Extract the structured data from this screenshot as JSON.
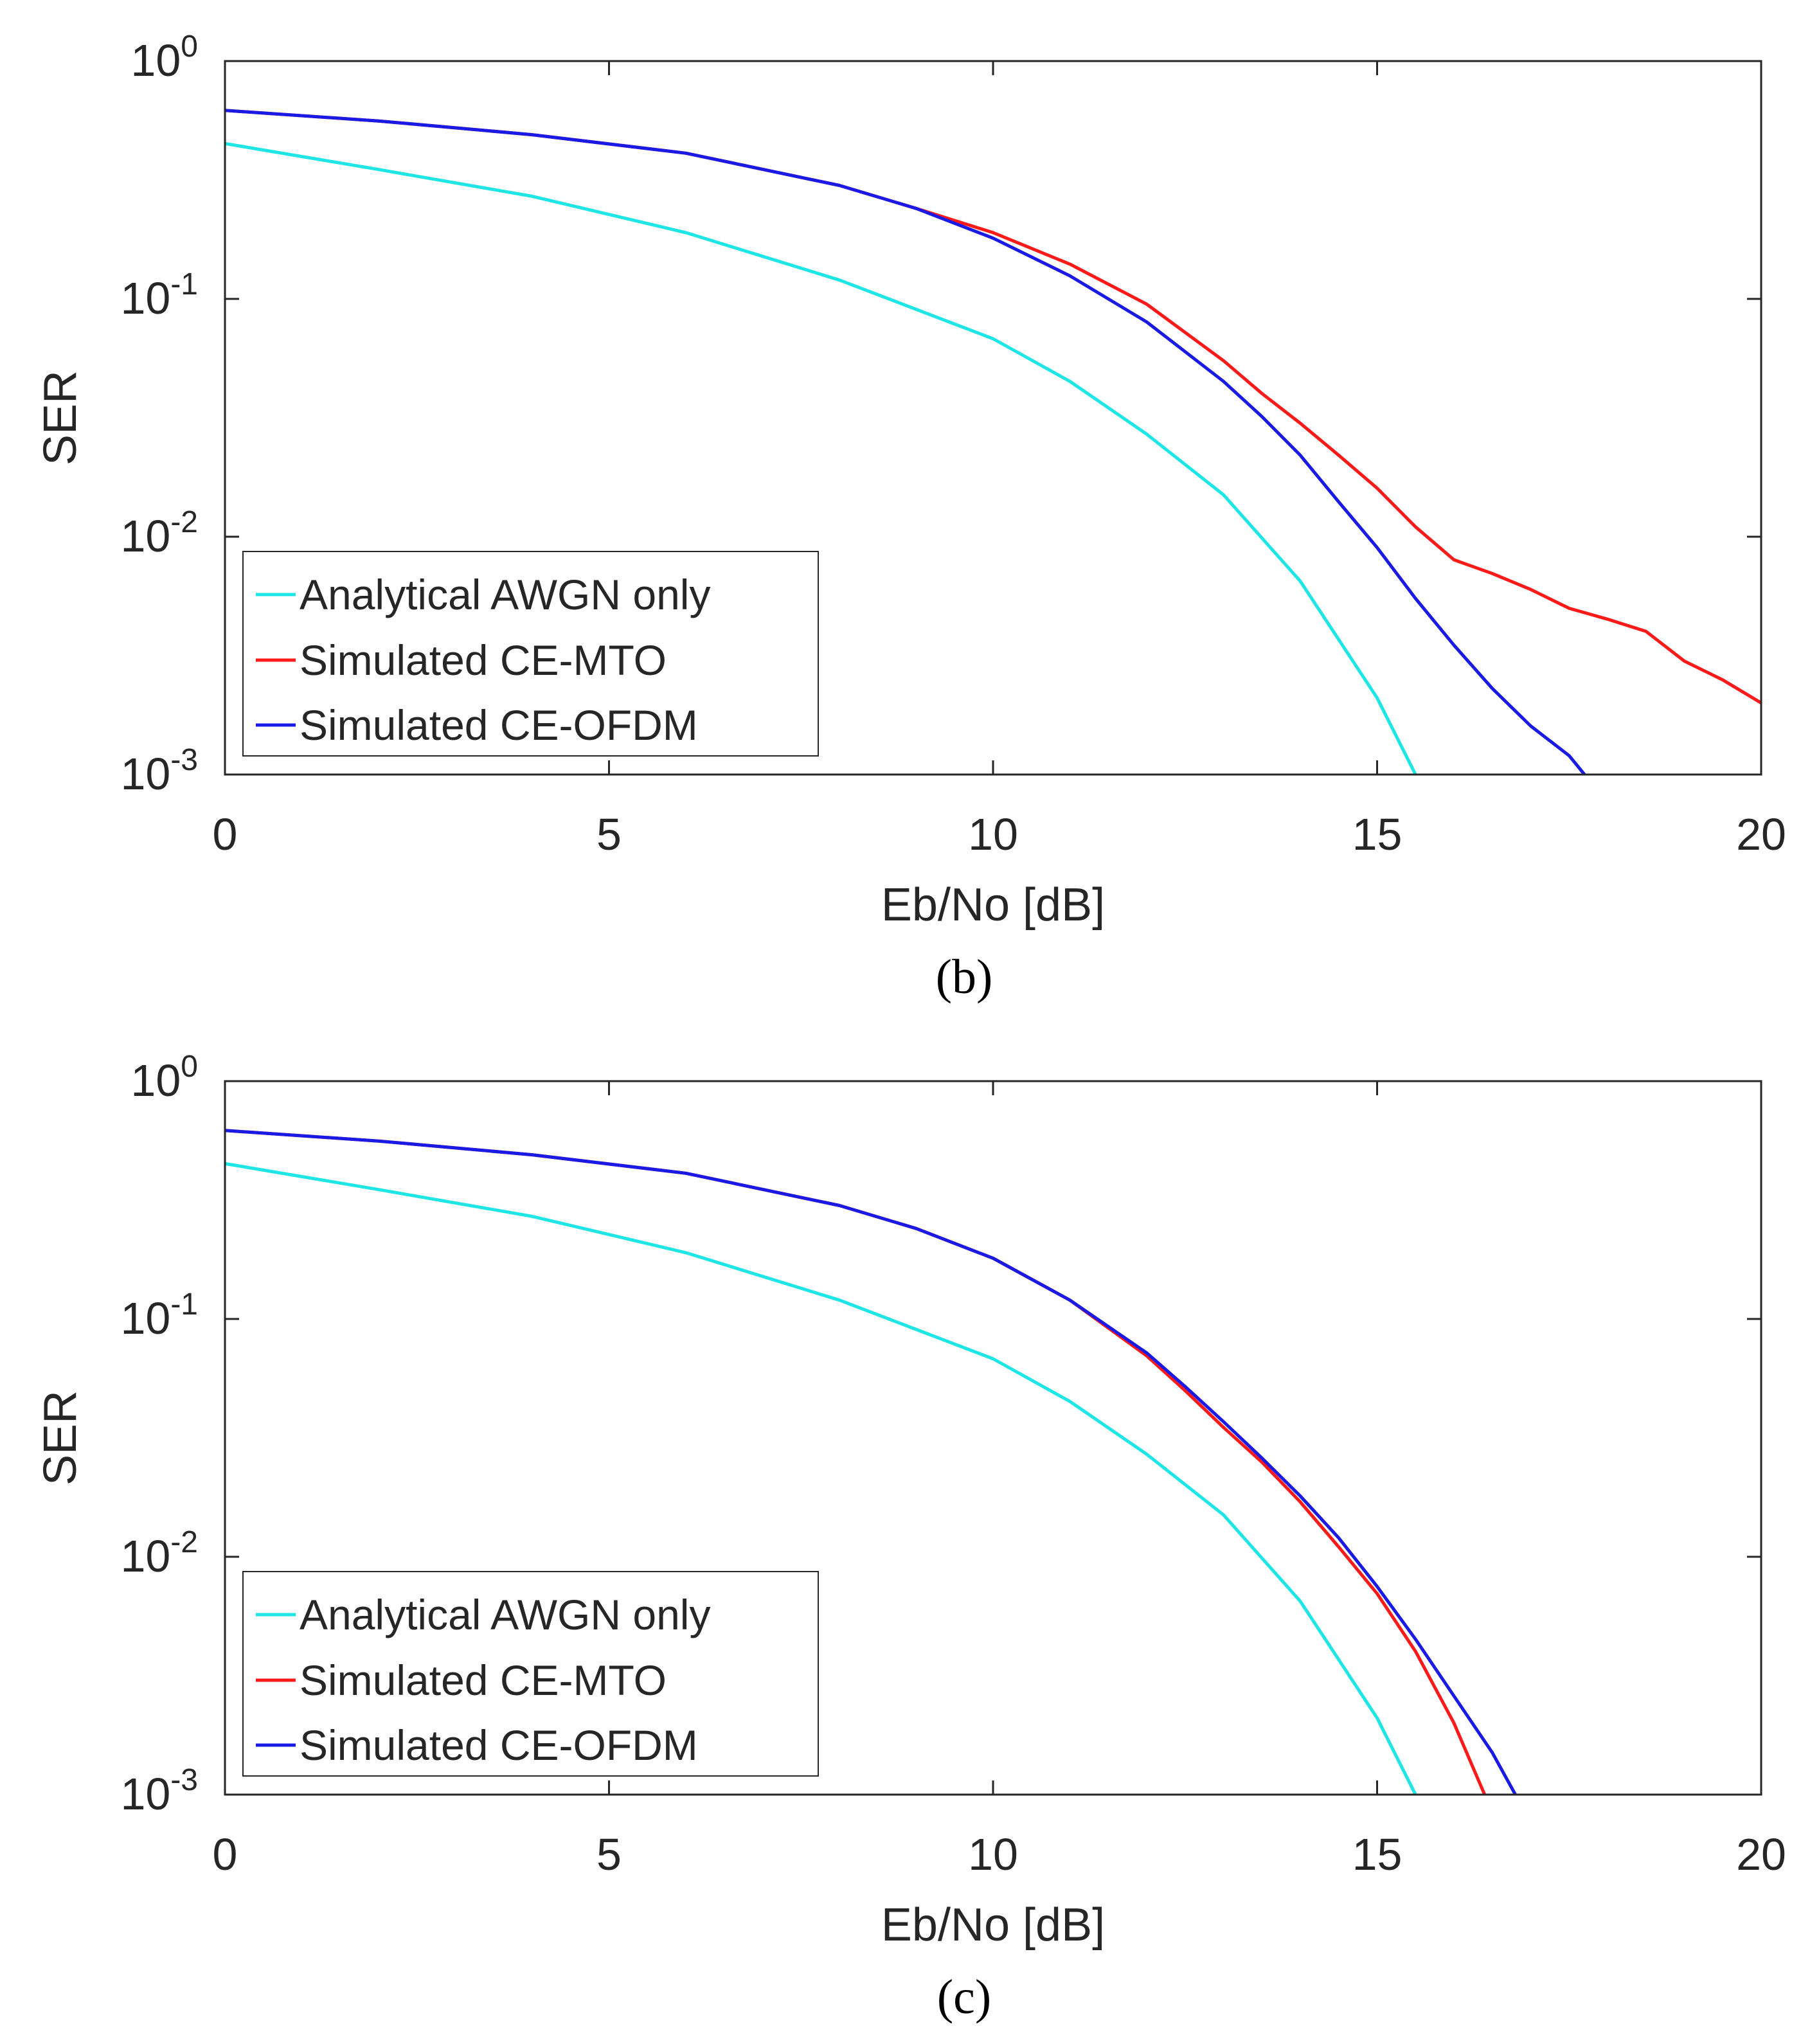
{
  "chart_data": [
    {
      "type": "line",
      "panel_label": "(b)",
      "xlabel": "Eb/No [dB]",
      "ylabel": "SER",
      "xlim": [
        0,
        20
      ],
      "ylim": [
        0.001,
        1
      ],
      "yscale": "log",
      "x_ticks": [
        "0",
        "5",
        "10",
        "15",
        "20"
      ],
      "y_ticks": [
        {
          "base": "10",
          "exp": "0"
        },
        {
          "base": "10",
          "exp": "-1"
        },
        {
          "base": "10",
          "exp": "-2"
        },
        {
          "base": "10",
          "exp": "-3"
        }
      ],
      "legend_location": "bottom-left",
      "grid": false,
      "series": [
        {
          "name": "Analytical AWGN only",
          "color": "#1ee6e6",
          "x": [
            0,
            2,
            4,
            6,
            8,
            10,
            11,
            12,
            13,
            14,
            15,
            15.5
          ],
          "y": [
            0.45,
            0.35,
            0.27,
            0.19,
            0.12,
            0.068,
            0.045,
            0.027,
            0.015,
            0.0065,
            0.0021,
            0.001
          ]
        },
        {
          "name": "Simulated CE-MTO",
          "color": "#ff1a1a",
          "x": [
            0,
            2,
            4,
            6,
            8,
            9,
            10,
            11,
            12,
            13,
            13.5,
            14,
            14.5,
            15,
            15.5,
            16,
            16.5,
            17,
            17.5,
            18,
            18.5,
            19,
            19.5,
            20
          ],
          "y": [
            0.62,
            0.56,
            0.49,
            0.41,
            0.3,
            0.24,
            0.19,
            0.14,
            0.095,
            0.055,
            0.04,
            0.03,
            0.022,
            0.016,
            0.011,
            0.008,
            0.007,
            0.006,
            0.005,
            0.0045,
            0.004,
            0.003,
            0.0025,
            0.002
          ]
        },
        {
          "name": "Simulated CE-OFDM",
          "color": "#1a1ae6",
          "x": [
            0,
            2,
            4,
            6,
            8,
            9,
            10,
            11,
            12,
            13,
            13.5,
            14,
            14.5,
            15,
            15.5,
            16,
            16.5,
            17,
            17.5,
            17.7
          ],
          "y": [
            0.62,
            0.56,
            0.49,
            0.41,
            0.3,
            0.24,
            0.18,
            0.125,
            0.08,
            0.045,
            0.032,
            0.022,
            0.014,
            0.009,
            0.0055,
            0.0035,
            0.0023,
            0.0016,
            0.0012,
            0.001
          ]
        }
      ]
    },
    {
      "type": "line",
      "panel_label": "(c)",
      "xlabel": "Eb/No [dB]",
      "ylabel": "SER",
      "xlim": [
        0,
        20
      ],
      "ylim": [
        0.001,
        1
      ],
      "yscale": "log",
      "x_ticks": [
        "0",
        "5",
        "10",
        "15",
        "20"
      ],
      "y_ticks": [
        {
          "base": "10",
          "exp": "0"
        },
        {
          "base": "10",
          "exp": "-1"
        },
        {
          "base": "10",
          "exp": "-2"
        },
        {
          "base": "10",
          "exp": "-3"
        }
      ],
      "legend_location": "bottom-left",
      "grid": false,
      "series": [
        {
          "name": "Analytical AWGN only",
          "color": "#1ee6e6",
          "x": [
            0,
            2,
            4,
            6,
            8,
            10,
            11,
            12,
            13,
            14,
            15,
            15.5
          ],
          "y": [
            0.45,
            0.35,
            0.27,
            0.19,
            0.12,
            0.068,
            0.045,
            0.027,
            0.015,
            0.0065,
            0.0021,
            0.001
          ]
        },
        {
          "name": "Simulated CE-MTO",
          "color": "#ff1a1a",
          "x": [
            0,
            2,
            4,
            6,
            8,
            9,
            10,
            11,
            12,
            12.5,
            13,
            13.5,
            14,
            14.5,
            15,
            15.5,
            16,
            16.4
          ],
          "y": [
            0.62,
            0.56,
            0.49,
            0.41,
            0.3,
            0.24,
            0.18,
            0.12,
            0.07,
            0.05,
            0.035,
            0.025,
            0.017,
            0.011,
            0.007,
            0.004,
            0.002,
            0.001
          ]
        },
        {
          "name": "Simulated CE-OFDM",
          "color": "#1a1ae6",
          "x": [
            0,
            2,
            4,
            6,
            8,
            9,
            10,
            11,
            12,
            12.5,
            13,
            13.5,
            14,
            14.5,
            15,
            15.5,
            16,
            16.5,
            16.8
          ],
          "y": [
            0.62,
            0.56,
            0.49,
            0.41,
            0.3,
            0.24,
            0.18,
            0.12,
            0.072,
            0.052,
            0.037,
            0.026,
            0.018,
            0.012,
            0.0075,
            0.0045,
            0.0026,
            0.0015,
            0.001
          ]
        }
      ]
    }
  ]
}
